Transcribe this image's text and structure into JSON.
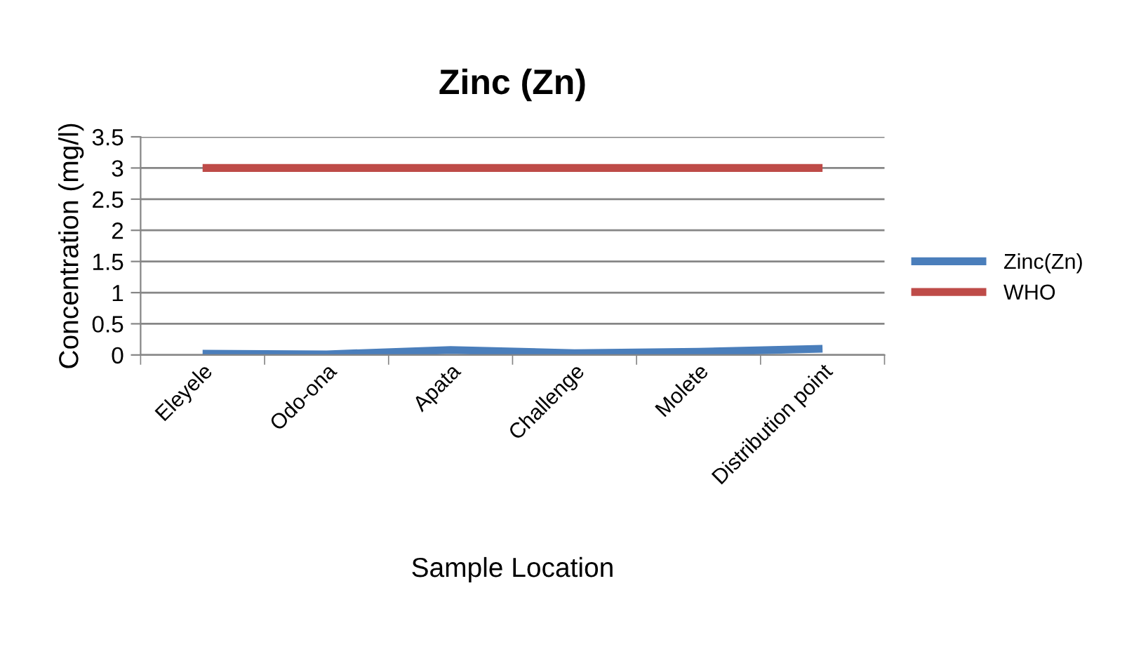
{
  "chart_data": {
    "type": "line",
    "title": "Zinc (Zn)",
    "xlabel": "Sample Location",
    "ylabel": "Concentration (mg/l)",
    "categories": [
      "Eleyele",
      "Odo-ona",
      "Apata",
      "Challenge",
      "Molete",
      "Distribution point"
    ],
    "series": [
      {
        "name": "Zinc(Zn)",
        "color": "#4a7ebb",
        "values": [
          0.02,
          0.01,
          0.08,
          0.03,
          0.05,
          0.1
        ]
      },
      {
        "name": "WHO",
        "color": "#be4b48",
        "values": [
          3,
          3,
          3,
          3,
          3,
          3
        ]
      }
    ],
    "ylim": [
      0,
      3.5
    ],
    "yticks": [
      0,
      0.5,
      1,
      1.5,
      2,
      2.5,
      3,
      3.5
    ],
    "grid": "y",
    "legend": "right",
    "marker": "none",
    "line_style": "solid"
  }
}
